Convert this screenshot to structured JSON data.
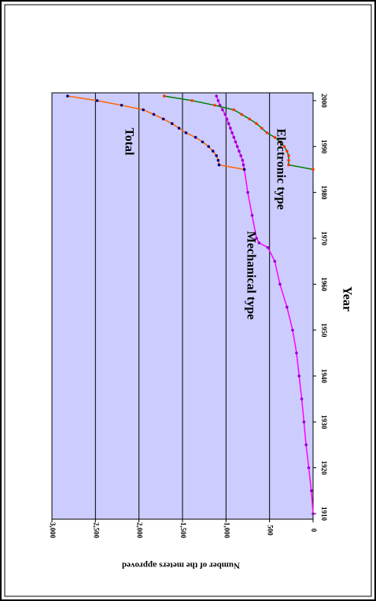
{
  "chart_data": {
    "type": "line",
    "x_label": "Year",
    "y_label": "Number of the meters approved",
    "x": [
      1910,
      1915,
      1920,
      1925,
      1930,
      1935,
      1940,
      1945,
      1950,
      1955,
      1960,
      1965,
      1968,
      1969,
      1970,
      1975,
      1980,
      1985,
      1986,
      1987,
      1988,
      1989,
      1990,
      1991,
      1992,
      1993,
      1994,
      1995,
      1996,
      1997,
      1998,
      1999,
      2000,
      2001
    ],
    "series": [
      {
        "name": "Mechanical type",
        "color": "#ff00ff",
        "marker_color": "#9900cc",
        "values": [
          0,
          20,
          50,
          80,
          105,
          130,
          160,
          190,
          235,
          300,
          380,
          440,
          520,
          620,
          650,
          700,
          750,
          790,
          800,
          810,
          830,
          850,
          870,
          890,
          910,
          930,
          950,
          970,
          990,
          1010,
          1040,
          1070,
          1090,
          1110
        ]
      },
      {
        "name": "Electronic type",
        "color": "#008000",
        "marker_color": "#ff3300",
        "values": [
          null,
          null,
          null,
          null,
          null,
          null,
          null,
          null,
          null,
          null,
          null,
          null,
          null,
          null,
          null,
          null,
          null,
          0,
          280,
          280,
          280,
          300,
          330,
          380,
          440,
          530,
          590,
          650,
          730,
          820,
          910,
          1130,
          1390,
          1710
        ]
      },
      {
        "name": "Total",
        "color": "#ff6600",
        "marker_color": "#000080",
        "values": [
          null,
          null,
          null,
          null,
          null,
          null,
          null,
          null,
          null,
          null,
          null,
          null,
          null,
          null,
          null,
          null,
          null,
          790,
          1080,
          1090,
          1110,
          1150,
          1200,
          1270,
          1350,
          1460,
          1540,
          1620,
          1720,
          1830,
          1950,
          2200,
          2480,
          2820
        ]
      }
    ],
    "xlim": [
      1908.8,
      2001.7
    ],
    "xticks": [
      1910,
      1920,
      1930,
      1940,
      1950,
      1960,
      1970,
      1980,
      1990,
      2000
    ],
    "ylim": [
      0,
      3000
    ],
    "yticks": [
      0,
      500,
      {
        "value": 1000,
        "label": "1,000"
      },
      {
        "value": 1500,
        "label": "1,500"
      },
      {
        "value": 2000,
        "label": "2,000"
      },
      {
        "value": 2500,
        "label": "2,500"
      },
      {
        "value": 3000,
        "label": "3,000"
      }
    ],
    "grid": true,
    "plot_background": "#ccccff"
  }
}
